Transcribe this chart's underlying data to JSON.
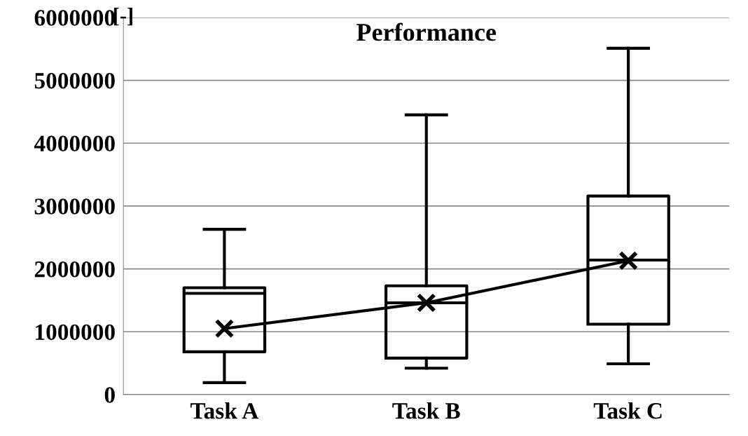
{
  "chart_data": {
    "type": "box",
    "title": "Performance",
    "ylabel": "[-]",
    "categories": [
      "Task A",
      "Task B",
      "Task C"
    ],
    "boxes": [
      {
        "low": 190000,
        "q1": 680000,
        "median": 1610000,
        "q3": 1700000,
        "high": 2630000
      },
      {
        "low": 420000,
        "q1": 580000,
        "median": 1460000,
        "q3": 1730000,
        "high": 4450000
      },
      {
        "low": 490000,
        "q1": 1120000,
        "median": 2140000,
        "q3": 3160000,
        "high": 5510000
      }
    ],
    "series": [
      {
        "type": "line",
        "color": "#000000",
        "values": [
          1050000,
          1460000,
          2130000
        ],
        "marker": "cross"
      }
    ],
    "ylim": [
      0,
      6000000
    ],
    "yticks": [
      0,
      1000000,
      2000000,
      3000000,
      4000000,
      5000000,
      6000000
    ],
    "grid": "y",
    "legend": false
  }
}
